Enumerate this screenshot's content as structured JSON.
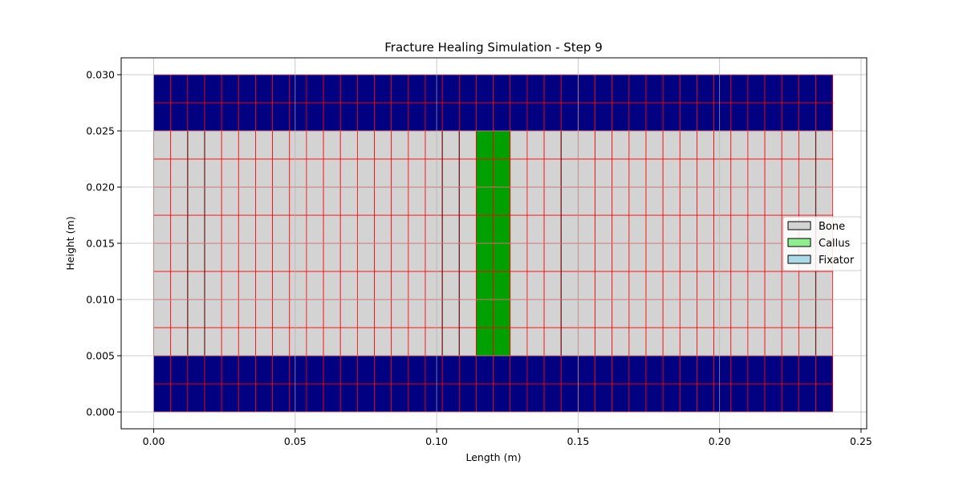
{
  "chart_data": {
    "type": "heatmap",
    "title": "Fracture Healing Simulation - Step 9",
    "xlabel": "Length (m)",
    "ylabel": "Height (m)",
    "xlim": [
      -0.0115,
      0.252
    ],
    "ylim": [
      -0.0015,
      0.0315
    ],
    "xticks": [
      0.0,
      0.05,
      0.1,
      0.15,
      0.2,
      0.25
    ],
    "xtick_labels": [
      "0.00",
      "0.05",
      "0.10",
      "0.15",
      "0.20",
      "0.25"
    ],
    "yticks": [
      0.0,
      0.005,
      0.01,
      0.015,
      0.02,
      0.025,
      0.03
    ],
    "ytick_labels": [
      "0.000",
      "0.005",
      "0.010",
      "0.015",
      "0.020",
      "0.025",
      "0.030"
    ],
    "grid": true,
    "legend_position": "center-right",
    "legend": [
      {
        "label": "Bone",
        "color": "#d3d3d3"
      },
      {
        "label": "Callus",
        "color": "#90ee90"
      },
      {
        "label": "Fixator",
        "color": "#add8e6"
      }
    ],
    "element_edge_color": "#ff0000",
    "mesh": {
      "n_cols": 40,
      "dx": 0.006,
      "x_start": 0.0,
      "y_edges": [
        0.0,
        0.0025,
        0.005,
        0.0075,
        0.01,
        0.0125,
        0.015,
        0.0175,
        0.02,
        0.0225,
        0.025,
        0.0275,
        0.03
      ],
      "row_materials": [
        "fixator",
        "fixator",
        "bone",
        "bone",
        "bone",
        "bone",
        "bone",
        "bone",
        "bone",
        "bone",
        "fixator",
        "fixator"
      ],
      "callus_columns": [
        19,
        20
      ]
    },
    "region_colors": {
      "fixator": "#000080",
      "bone": "#d3d3d3",
      "callus": "#00a000"
    },
    "dark_vertical_lines_x": [
      0.012,
      0.018,
      0.102,
      0.108,
      0.144,
      0.234
    ]
  }
}
